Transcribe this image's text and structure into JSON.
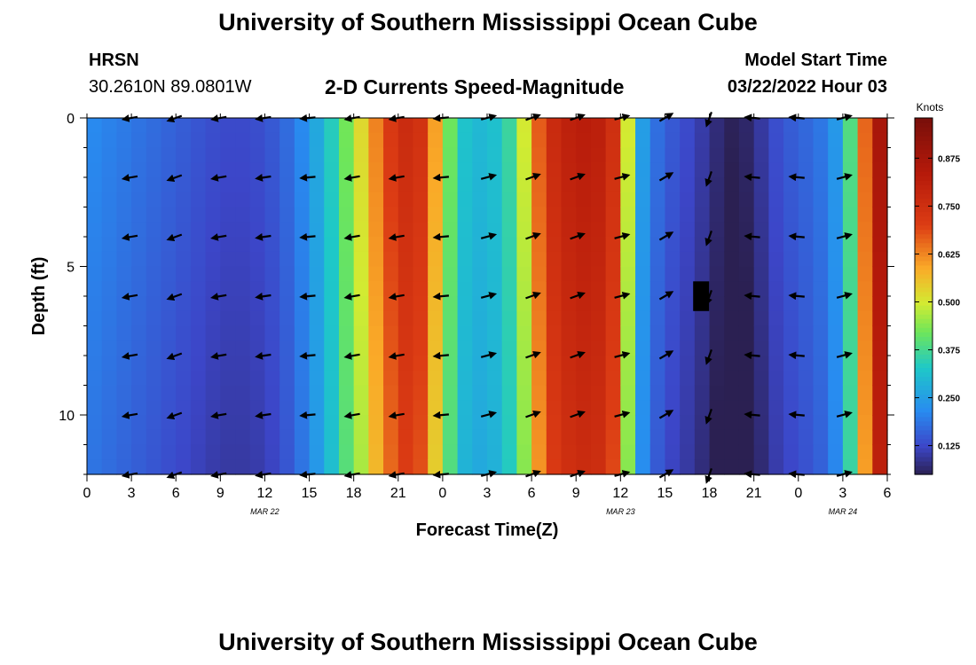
{
  "page": {
    "title_top": "University of Southern Mississippi Ocean Cube",
    "title_bottom": "University of Southern Mississippi Ocean Cube",
    "station_code": "HRSN",
    "station_coords": "30.2610N  89.0801W",
    "subtitle": "2-D Currents Speed-Magnitude",
    "model_start_label": "Model Start Time",
    "model_start_value": "03/22/2022 Hour 03"
  },
  "chart_data": {
    "type": "heatmap",
    "title": "2-D Currents Speed-Magnitude",
    "xlabel": "Forecast Time(Z)",
    "ylabel": "Depth (ft)",
    "x_tick_labels": [
      "0",
      "3",
      "6",
      "9",
      "12",
      "15",
      "18",
      "21",
      "0",
      "3",
      "6",
      "9",
      "12",
      "15",
      "18",
      "21",
      "0",
      "3",
      "6"
    ],
    "x_range": [
      0,
      54
    ],
    "y_range": [
      0,
      12
    ],
    "y_ticks": [
      0,
      5,
      10
    ],
    "y_tick_labels": [
      "0",
      "5",
      "10"
    ],
    "date_labels": [
      {
        "text": "MAR 22",
        "hour": 12
      },
      {
        "text": "MAR 23",
        "hour": 36
      },
      {
        "text": "MAR 24",
        "hour": 51
      }
    ],
    "colorbar": {
      "label": "Knots",
      "min": 0.05,
      "max": 0.98,
      "ticks": [
        0.125,
        0.25,
        0.375,
        0.5,
        0.625,
        0.75,
        0.875
      ],
      "tick_labels": [
        "0.125",
        "0.250",
        "0.375",
        "0.500",
        "0.625",
        "0.750",
        "0.875"
      ]
    },
    "speed_profile": {
      "hours": [
        0,
        1,
        2,
        3,
        4,
        5,
        6,
        7,
        8,
        9,
        10,
        11,
        12,
        13,
        14,
        15,
        16,
        17,
        18,
        19,
        20,
        21,
        22,
        23,
        24,
        25,
        26,
        27,
        28,
        29,
        30,
        31,
        32,
        33,
        34,
        35,
        36,
        37,
        38,
        39,
        40,
        41,
        42,
        43,
        44,
        45,
        46,
        47,
        48,
        49,
        50,
        51,
        52,
        53,
        54
      ],
      "values": [
        0.22,
        0.21,
        0.2,
        0.19,
        0.18,
        0.17,
        0.16,
        0.15,
        0.14,
        0.13,
        0.13,
        0.13,
        0.14,
        0.16,
        0.19,
        0.24,
        0.3,
        0.38,
        0.47,
        0.58,
        0.68,
        0.75,
        0.78,
        0.7,
        0.5,
        0.34,
        0.3,
        0.3,
        0.33,
        0.4,
        0.6,
        0.74,
        0.8,
        0.82,
        0.83,
        0.8,
        0.7,
        0.3,
        0.2,
        0.16,
        0.14,
        0.12,
        0.09,
        0.06,
        0.05,
        0.08,
        0.12,
        0.15,
        0.16,
        0.18,
        0.2,
        0.28,
        0.5,
        0.82,
        0.92
      ]
    },
    "dark_anomaly": {
      "hour": 41.5,
      "depth_range": [
        5.5,
        6.5
      ]
    },
    "vectors": {
      "hours": [
        3,
        6,
        9,
        12,
        15,
        18,
        21,
        24,
        27,
        30,
        33,
        36,
        39,
        42,
        45,
        48,
        51
      ],
      "depths": [
        0,
        2,
        4,
        6,
        8,
        10,
        12
      ],
      "direction_deg": [
        190,
        200,
        190,
        188,
        185,
        190,
        190,
        185,
        15,
        20,
        20,
        15,
        30,
        250,
        175,
        175,
        15
      ]
    }
  }
}
